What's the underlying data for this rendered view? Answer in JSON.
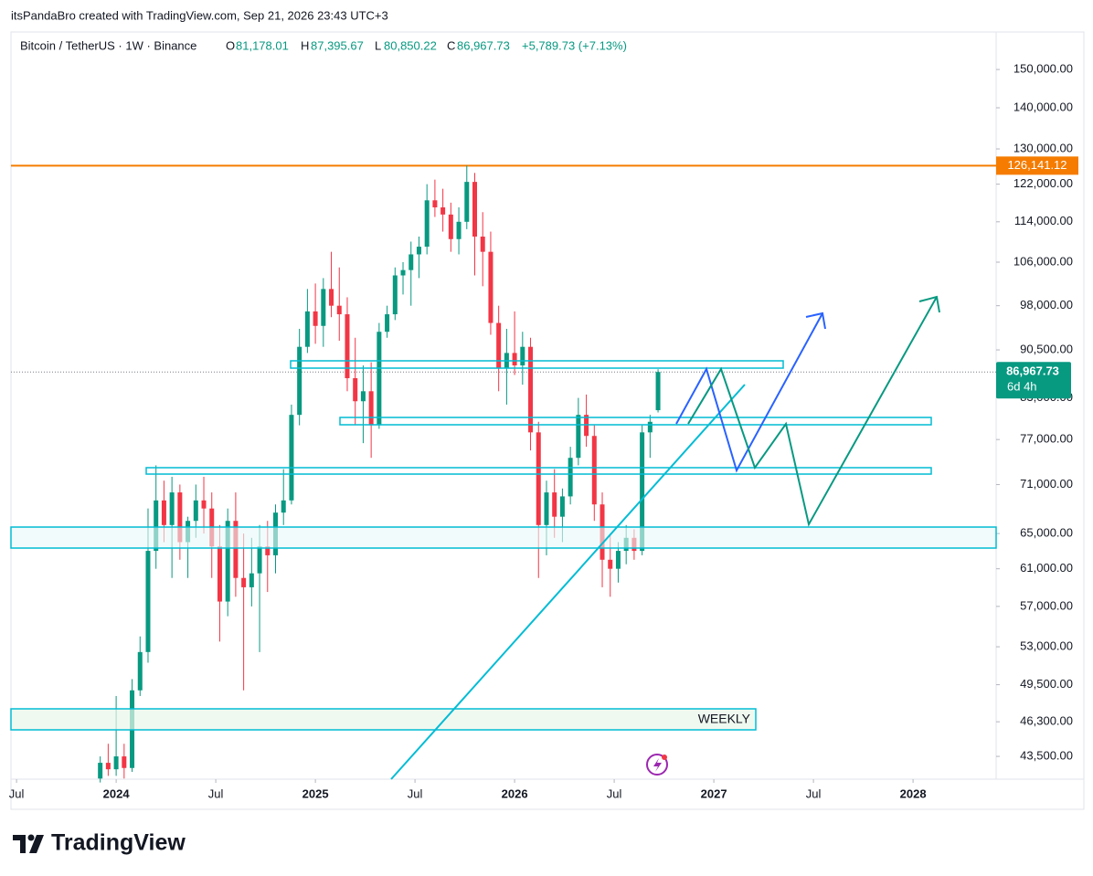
{
  "header": {
    "credit": "itsPandaBro created with TradingView.com, Sep 21, 2026 23:43 UTC+3",
    "symbol": "Bitcoin / TetherUS · 1W · Binance",
    "o_label": "O",
    "o": "81,178.01",
    "h_label": "H",
    "h": "87,395.67",
    "l_label": "L",
    "l": "80,850.22",
    "c_label": "C",
    "c": "86,967.73",
    "change": "+5,789.73 (+7.13%)"
  },
  "logo": "TradingView",
  "chart_data": {
    "type": "candlestick",
    "log_scale": true,
    "up_color": "#089981",
    "down_color": "#f23645",
    "annotation": "WEEKLY",
    "xlim": [
      2023.472,
      2028.417
    ],
    "xticks": [
      {
        "value": 2023.5,
        "label": "Jul"
      },
      {
        "value": 2024,
        "label": "2024"
      },
      {
        "value": 2024.5,
        "label": "Jul"
      },
      {
        "value": 2025,
        "label": "2025"
      },
      {
        "value": 2025.5,
        "label": "Jul"
      },
      {
        "value": 2026,
        "label": "2026"
      },
      {
        "value": 2026.5,
        "label": "Jul"
      },
      {
        "value": 2027,
        "label": "2027"
      },
      {
        "value": 2027.5,
        "label": "Jul"
      },
      {
        "value": 2028,
        "label": "2028"
      }
    ],
    "ylim": [
      41750,
      160500
    ],
    "yticks": [
      {
        "value": 150000,
        "label": "150,000.00"
      },
      {
        "value": 140000,
        "label": "140,000.00"
      },
      {
        "value": 130000,
        "label": "130,000.00"
      },
      {
        "value": 122000,
        "label": "122,000.00"
      },
      {
        "value": 114000,
        "label": "114,000.00"
      },
      {
        "value": 106000,
        "label": "106,000.00"
      },
      {
        "value": 98000,
        "label": "98,000.00"
      },
      {
        "value": 90500,
        "label": "90,500.00"
      },
      {
        "value": 83000,
        "label": "83,000.00"
      },
      {
        "value": 77000,
        "label": "77,000.00"
      },
      {
        "value": 71000,
        "label": "71,000.00"
      },
      {
        "value": 65000,
        "label": "65,000.00"
      },
      {
        "value": 61000,
        "label": "61,000.00"
      },
      {
        "value": 57000,
        "label": "57,000.00"
      },
      {
        "value": 53000,
        "label": "53,000.00"
      },
      {
        "value": 49500,
        "label": "49,500.00"
      },
      {
        "value": 46300,
        "label": "46,300.00"
      },
      {
        "value": 43500,
        "label": "43,500.00"
      }
    ],
    "price_line": {
      "value": 126141.12,
      "label": "126,141.12",
      "color": "#f57c00"
    },
    "last_price": {
      "value": 86967.73,
      "label": "86,967.73",
      "countdown": "6d 4h",
      "color": "#089981"
    },
    "x": [
      2023.92,
      2023.96,
      2024.0,
      2024.04,
      2024.08,
      2024.12,
      2024.16,
      2024.2,
      2024.24,
      2024.28,
      2024.32,
      2024.36,
      2024.4,
      2024.44,
      2024.48,
      2024.52,
      2024.56,
      2024.6,
      2024.64,
      2024.68,
      2024.72,
      2024.76,
      2024.8,
      2024.84,
      2024.88,
      2024.92,
      2024.96,
      2025.0,
      2025.04,
      2025.08,
      2025.12,
      2025.16,
      2025.2,
      2025.24,
      2025.28,
      2025.32,
      2025.36,
      2025.4,
      2025.44,
      2025.48,
      2025.52,
      2025.56,
      2025.6,
      2025.64,
      2025.68,
      2025.72,
      2025.76,
      2025.8,
      2025.84,
      2025.88,
      2025.92,
      2025.96,
      2026.0,
      2026.04,
      2026.08,
      2026.12,
      2026.16,
      2026.2,
      2026.24,
      2026.28,
      2026.32,
      2026.36,
      2026.4,
      2026.44,
      2026.48,
      2026.52,
      2026.56,
      2026.6,
      2026.64,
      2026.68,
      2026.72
    ],
    "open": [
      41800,
      43000,
      42500,
      43500,
      42600,
      49000,
      52500,
      63000,
      69000,
      66000,
      70000,
      64000,
      66500,
      69000,
      68000,
      63500,
      57500,
      66500,
      60000,
      59000,
      60500,
      63500,
      62500,
      67500,
      69000,
      80500,
      91000,
      97000,
      94500,
      101000,
      98000,
      96500,
      86000,
      82500,
      84000,
      79000,
      93500,
      96500,
      103500,
      104500,
      107500,
      109000,
      118500,
      117000,
      115500,
      110500,
      114000,
      122500,
      111000,
      108000,
      95000,
      87500,
      90000,
      88000,
      91000,
      78000,
      66000,
      70000,
      67000,
      69500,
      74500,
      80500,
      77500,
      68500,
      62000,
      61000,
      63000,
      64500,
      63000,
      78000,
      81178.01
    ],
    "high": [
      43500,
      44500,
      48500,
      44500,
      50000,
      54000,
      68000,
      73500,
      71500,
      72000,
      71000,
      67000,
      71000,
      72000,
      70000,
      66000,
      68000,
      70000,
      65000,
      64500,
      66000,
      66500,
      68500,
      73000,
      82000,
      94000,
      101000,
      102000,
      103000,
      108000,
      105000,
      99500,
      92500,
      88000,
      88500,
      95000,
      98000,
      105000,
      106000,
      110000,
      111000,
      122000,
      123000,
      121000,
      118000,
      117000,
      126141,
      124500,
      116000,
      112000,
      98000,
      94000,
      97000,
      93500,
      92500,
      79500,
      71500,
      73000,
      70500,
      76000,
      83000,
      83500,
      79000,
      70000,
      65000,
      64000,
      66000,
      65500,
      79000,
      80500,
      87395.67
    ],
    "low": [
      41500,
      42000,
      42000,
      41800,
      42300,
      48500,
      51500,
      61000,
      64000,
      60000,
      62000,
      60000,
      64500,
      65000,
      60000,
      53500,
      56000,
      58000,
      49000,
      57000,
      52500,
      58500,
      60500,
      66000,
      68500,
      79000,
      90000,
      91500,
      91000,
      96000,
      92000,
      84000,
      79000,
      76500,
      74500,
      78500,
      92500,
      95500,
      100000,
      98000,
      103000,
      107500,
      115000,
      112000,
      108000,
      107500,
      112500,
      103500,
      101500,
      93000,
      84000,
      82000,
      86500,
      85000,
      75500,
      60000,
      62500,
      64500,
      64000,
      68500,
      73500,
      76000,
      66500,
      59000,
      58000,
      59500,
      61500,
      62000,
      62500,
      74500,
      80850.22
    ],
    "close": [
      43000,
      42500,
      43500,
      42600,
      49000,
      52500,
      63000,
      69000,
      66000,
      70000,
      64000,
      66500,
      69000,
      68000,
      63500,
      57500,
      66500,
      60000,
      59000,
      60500,
      63500,
      62500,
      67500,
      69000,
      80500,
      91000,
      97000,
      94500,
      101000,
      98000,
      96500,
      86000,
      82500,
      84000,
      79000,
      93500,
      96500,
      103500,
      104500,
      107500,
      109000,
      118500,
      117000,
      115500,
      110500,
      114000,
      122500,
      111000,
      108000,
      95000,
      87500,
      90000,
      88000,
      91000,
      78000,
      66000,
      70000,
      67000,
      69500,
      74500,
      80500,
      77500,
      68500,
      62000,
      61000,
      63000,
      64500,
      63000,
      78000,
      79500,
      86967.73
    ]
  }
}
